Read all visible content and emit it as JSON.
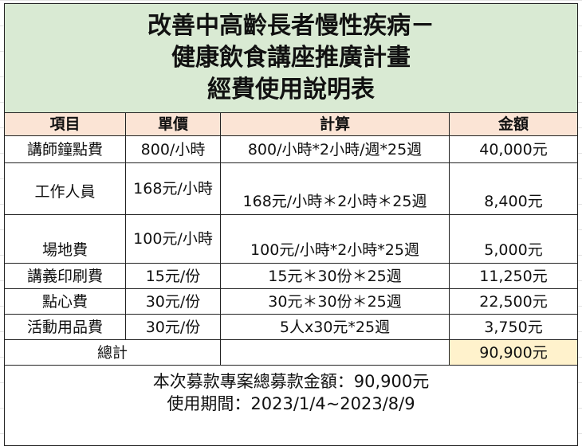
{
  "title": [
    "改善中高齡長者慢性疾病－",
    "健康飲食講座推廣計畫",
    "經費使用說明表"
  ],
  "headers": [
    "項目",
    "單價",
    "計算",
    "金額"
  ],
  "rows": [
    [
      "講師鐘點費",
      "800/小時",
      "800/小時*2小時/週*25週",
      "40,000元"
    ],
    [
      "工作人員",
      "168元/小時",
      "168元/小時＊2小時＊25週",
      "8,400元"
    ],
    [
      "場地費",
      "100元/小時",
      "100元/小時*2小時*25週",
      "5,000元"
    ],
    [
      "講義印刷費",
      "15元/份",
      "15元＊30份＊25週",
      "11,250元"
    ],
    [
      "點心費",
      "30元/份",
      "30元＊30份＊25週",
      "22,500元"
    ],
    [
      "活動用品費",
      "30元/份",
      "5人x30元*25週",
      "3,750元"
    ]
  ],
  "total": {
    "label": "總計",
    "value": "90,900元"
  },
  "footer": [
    "本次募款專案總募款金額：90,900元",
    "使用期間：2023/1/4~2023/8/9"
  ],
  "colors": {
    "title_bg": "#d9ead3",
    "header_bg": "#fbe4d5",
    "total_bg": "#fff2cc"
  }
}
